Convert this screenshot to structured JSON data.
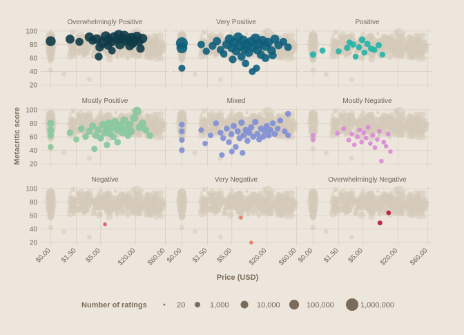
{
  "chart_data": {
    "type": "scatter",
    "xlabel": "Price (USD)",
    "ylabel": "Metacritic score",
    "x_scale": "log",
    "xlim": [
      0.7,
      70
    ],
    "x_ticks": [
      {
        "value": 1.0,
        "label": "$0.00"
      },
      {
        "value": 2.5,
        "label": "$1.50"
      },
      {
        "value": 6.0,
        "label": "$5.00"
      },
      {
        "value": 21.0,
        "label": "$20.00"
      },
      {
        "value": 61.0,
        "label": "$60.00"
      }
    ],
    "ylim": [
      16,
      104
    ],
    "y_ticks": [
      20,
      40,
      60,
      80,
      100
    ],
    "grid": true,
    "facet_layout": "3x3",
    "background_series_color": "#d6cbb9",
    "legend": {
      "position": "bottom",
      "title": "Number of ratings",
      "items": [
        {
          "label": "20",
          "ratings": 20
        },
        {
          "label": "1,000",
          "ratings": 1000
        },
        {
          "label": "10,000",
          "ratings": 10000
        },
        {
          "label": "100,000",
          "ratings": 100000
        },
        {
          "label": "1,000,000",
          "ratings": 1000000
        }
      ]
    },
    "panels": [
      {
        "title": "Overwhelmingly Positive",
        "color": "#0f3b48",
        "points": [
          [
            1.0,
            85,
            120000
          ],
          [
            2.0,
            88,
            40000
          ],
          [
            2.8,
            84,
            15000
          ],
          [
            4.0,
            91,
            60000
          ],
          [
            4.5,
            86,
            20000
          ],
          [
            5.2,
            88,
            90000
          ],
          [
            5.8,
            76,
            30000
          ],
          [
            6.5,
            83,
            200000
          ],
          [
            7.2,
            92,
            150000
          ],
          [
            8.0,
            88,
            45000
          ],
          [
            8.8,
            84,
            60000
          ],
          [
            9.8,
            91,
            110000
          ],
          [
            11.0,
            87,
            30000
          ],
          [
            12.0,
            80,
            90000
          ],
          [
            13.0,
            89,
            70000
          ],
          [
            14.0,
            93,
            130000
          ],
          [
            15.0,
            85,
            25000
          ],
          [
            16.5,
            88,
            55000
          ],
          [
            18.0,
            90,
            95000
          ],
          [
            20.0,
            86,
            140000
          ],
          [
            22.0,
            92,
            75000
          ],
          [
            24.0,
            84,
            20000
          ],
          [
            27.0,
            89,
            65000
          ],
          [
            5.6,
            62,
            12000
          ],
          [
            9.0,
            71,
            8000
          ],
          [
            17.0,
            78,
            40000
          ],
          [
            25.0,
            74,
            22000
          ],
          [
            7.8,
            79,
            35000
          ],
          [
            11.5,
            94,
            180000
          ],
          [
            19.0,
            82,
            50000
          ]
        ]
      },
      {
        "title": "Very Positive",
        "color": "#0e5f7c",
        "points": [
          [
            1.0,
            82,
            900000
          ],
          [
            1.0,
            75,
            300000
          ],
          [
            1.0,
            45,
            5000
          ],
          [
            2.0,
            80,
            8000
          ],
          [
            2.4,
            70,
            6000
          ],
          [
            3.0,
            78,
            12000
          ],
          [
            3.5,
            85,
            20000
          ],
          [
            4.0,
            72,
            9000
          ],
          [
            4.5,
            66,
            7000
          ],
          [
            5.0,
            80,
            40000
          ],
          [
            5.5,
            88,
            60000
          ],
          [
            6.0,
            75,
            30000
          ],
          [
            6.5,
            83,
            80000
          ],
          [
            7.0,
            70,
            25000
          ],
          [
            7.5,
            91,
            70000
          ],
          [
            8.0,
            78,
            100000
          ],
          [
            8.5,
            62,
            15000
          ],
          [
            9.0,
            86,
            120000
          ],
          [
            9.5,
            73,
            45000
          ],
          [
            10.0,
            80,
            150000
          ],
          [
            11.0,
            68,
            30000
          ],
          [
            12.0,
            84,
            90000
          ],
          [
            13.0,
            76,
            60000
          ],
          [
            14.0,
            89,
            110000
          ],
          [
            15.0,
            72,
            40000
          ],
          [
            16.0,
            81,
            75000
          ],
          [
            17.0,
            65,
            18000
          ],
          [
            18.0,
            86,
            55000
          ],
          [
            20.0,
            78,
            130000
          ],
          [
            22.0,
            83,
            65000
          ],
          [
            25.0,
            71,
            28000
          ],
          [
            28.0,
            88,
            42000
          ],
          [
            32.0,
            79,
            20000
          ],
          [
            38.0,
            84,
            12000
          ],
          [
            45.0,
            76,
            9000
          ],
          [
            6.2,
            58,
            11000
          ],
          [
            9.8,
            52,
            8000
          ],
          [
            14.5,
            45,
            6000
          ],
          [
            12.5,
            40,
            5000
          ],
          [
            20.0,
            60,
            15000
          ],
          [
            26.0,
            64,
            13000
          ]
        ]
      },
      {
        "title": "Positive",
        "color": "#21b2a8",
        "points": [
          [
            1.0,
            65,
            3000
          ],
          [
            1.4,
            71,
            2000
          ],
          [
            2.5,
            70,
            1500
          ],
          [
            3.4,
            75,
            2500
          ],
          [
            3.7,
            83,
            1800
          ],
          [
            4.2,
            80,
            2200
          ],
          [
            4.6,
            62,
            1500
          ],
          [
            5.2,
            76,
            2000
          ],
          [
            5.8,
            87,
            3000
          ],
          [
            6.3,
            68,
            1700
          ],
          [
            7.0,
            81,
            2500
          ],
          [
            8.0,
            74,
            2100
          ],
          [
            9.0,
            72,
            1800
          ],
          [
            10.5,
            79,
            2400
          ],
          [
            12.0,
            65,
            1400
          ]
        ]
      },
      {
        "title": "Mostly Positive",
        "color": "#86c89e",
        "points": [
          [
            1.0,
            80,
            6000
          ],
          [
            1.0,
            70,
            5000
          ],
          [
            1.0,
            62,
            3000
          ],
          [
            1.0,
            45,
            1500
          ],
          [
            2.0,
            66,
            3000
          ],
          [
            2.5,
            56,
            2000
          ],
          [
            3.0,
            72,
            4000
          ],
          [
            3.5,
            60,
            3000
          ],
          [
            4.0,
            68,
            5000
          ],
          [
            4.5,
            76,
            6000
          ],
          [
            5.0,
            62,
            4000
          ],
          [
            5.5,
            70,
            8000
          ],
          [
            6.0,
            58,
            5000
          ],
          [
            6.5,
            78,
            9000
          ],
          [
            7.0,
            66,
            7000
          ],
          [
            7.5,
            72,
            6000
          ],
          [
            8.0,
            80,
            10000
          ],
          [
            8.5,
            64,
            5000
          ],
          [
            9.0,
            74,
            9000
          ],
          [
            9.5,
            60,
            4000
          ],
          [
            10.0,
            82,
            12000
          ],
          [
            11.0,
            70,
            8000
          ],
          [
            12.0,
            76,
            11000
          ],
          [
            13.0,
            66,
            6000
          ],
          [
            14.0,
            84,
            15000
          ],
          [
            15.0,
            72,
            9000
          ],
          [
            16.0,
            62,
            5000
          ],
          [
            17.0,
            78,
            12000
          ],
          [
            18.0,
            68,
            7000
          ],
          [
            20.0,
            88,
            20000
          ],
          [
            22.0,
            98,
            30000
          ],
          [
            24.0,
            74,
            8000
          ],
          [
            27.0,
            80,
            9000
          ],
          [
            30.0,
            70,
            6000
          ],
          [
            35.0,
            62,
            4000
          ],
          [
            4.8,
            42,
            2500
          ],
          [
            7.5,
            48,
            3000
          ],
          [
            11.0,
            52,
            3500
          ]
        ]
      },
      {
        "title": "Mixed",
        "color": "#7d8ed6",
        "points": [
          [
            1.0,
            78,
            1500
          ],
          [
            1.0,
            68,
            1200
          ],
          [
            1.0,
            55,
            1000
          ],
          [
            1.0,
            40,
            1300
          ],
          [
            2.0,
            70,
            1000
          ],
          [
            2.3,
            50,
            900
          ],
          [
            2.8,
            62,
            1200
          ],
          [
            3.4,
            80,
            1400
          ],
          [
            4.0,
            66,
            1600
          ],
          [
            4.4,
            58,
            1500
          ],
          [
            5.0,
            72,
            1800
          ],
          [
            5.4,
            52,
            1400
          ],
          [
            5.9,
            64,
            2000
          ],
          [
            6.4,
            76,
            2200
          ],
          [
            6.9,
            45,
            1500
          ],
          [
            7.4,
            68,
            2100
          ],
          [
            7.9,
            58,
            1800
          ],
          [
            8.5,
            81,
            2500
          ],
          [
            9.2,
            62,
            2000
          ],
          [
            9.9,
            70,
            2300
          ],
          [
            10.5,
            54,
            1700
          ],
          [
            11.2,
            66,
            2200
          ],
          [
            12.0,
            74,
            2400
          ],
          [
            12.9,
            60,
            1900
          ],
          [
            13.9,
            82,
            2600
          ],
          [
            15.0,
            64,
            2100
          ],
          [
            16.0,
            56,
            1700
          ],
          [
            17.2,
            72,
            2300
          ],
          [
            18.4,
            60,
            1900
          ],
          [
            19.7,
            68,
            2100
          ],
          [
            21.0,
            76,
            2000
          ],
          [
            22.5,
            62,
            1800
          ],
          [
            24.0,
            70,
            1900
          ],
          [
            26.0,
            80,
            1700
          ],
          [
            28.0,
            64,
            1600
          ],
          [
            31.0,
            72,
            1500
          ],
          [
            34.0,
            84,
            1400
          ],
          [
            40.0,
            68,
            1300
          ],
          [
            45.0,
            94,
            1600
          ],
          [
            45.0,
            62,
            1200
          ],
          [
            4.2,
            33,
            1100
          ],
          [
            6.0,
            38,
            1200
          ],
          [
            8.8,
            36,
            1300
          ]
        ]
      },
      {
        "title": "Mostly Negative",
        "color": "#d987d8",
        "points": [
          [
            1.0,
            62,
            400
          ],
          [
            1.0,
            55,
            350
          ],
          [
            2.4,
            65,
            400
          ],
          [
            3.0,
            72,
            450
          ],
          [
            3.6,
            55,
            500
          ],
          [
            4.0,
            64,
            400
          ],
          [
            4.4,
            48,
            350
          ],
          [
            4.9,
            60,
            500
          ],
          [
            5.3,
            70,
            450
          ],
          [
            5.7,
            52,
            400
          ],
          [
            6.2,
            66,
            500
          ],
          [
            6.7,
            58,
            450
          ],
          [
            7.2,
            74,
            400
          ],
          [
            7.8,
            50,
            350
          ],
          [
            8.5,
            62,
            450
          ],
          [
            9.2,
            44,
            400
          ],
          [
            10.0,
            56,
            450
          ],
          [
            10.8,
            68,
            400
          ],
          [
            11.6,
            24,
            350
          ],
          [
            12.6,
            52,
            400
          ],
          [
            13.7,
            46,
            350
          ],
          [
            14.8,
            64,
            400
          ],
          [
            16.0,
            38,
            350
          ]
        ]
      },
      {
        "title": "Negative",
        "color": "#e0506a",
        "points": [
          [
            7.0,
            47,
            150
          ]
        ]
      },
      {
        "title": "Very Negative",
        "color": "#e8765a",
        "points": [
          [
            8.3,
            57,
            150
          ],
          [
            12.0,
            20,
            150
          ]
        ]
      },
      {
        "title": "Overwhelmingly Negative",
        "color": "#b4163f",
        "points": [
          [
            11.0,
            49,
            500
          ],
          [
            15.0,
            64,
            400
          ]
        ]
      }
    ]
  }
}
